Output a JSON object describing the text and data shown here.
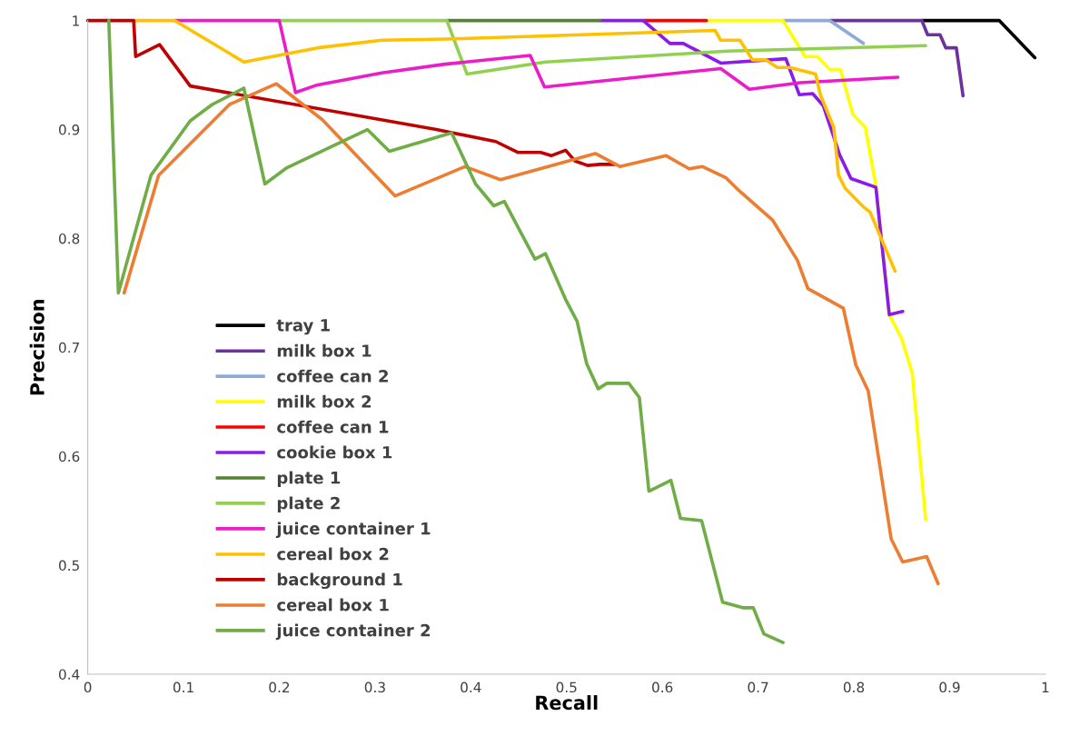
{
  "chart_data": {
    "type": "line",
    "xlabel": "Recall",
    "ylabel": "Precision",
    "xlim": [
      0,
      1
    ],
    "ylim": [
      0.4,
      1
    ],
    "xticks": [
      0,
      0.1,
      0.2,
      0.3,
      0.4,
      0.5,
      0.6,
      0.7,
      0.8,
      0.9,
      1
    ],
    "yticks": [
      0.4,
      0.5,
      0.6,
      0.7,
      0.8,
      0.9,
      1
    ],
    "grid": false,
    "legend": "lower left",
    "marker": "none",
    "line_style": "solid",
    "series": [
      {
        "name": "tray 1",
        "color": "#000000",
        "x": [
          0.871,
          0.952,
          0.989
        ],
        "values": [
          1,
          1,
          0.966
        ]
      },
      {
        "name": "milk box 1",
        "color": "#7030a0",
        "x": [
          0.775,
          0.871,
          0.877,
          0.89,
          0.896,
          0.907,
          0.914
        ],
        "values": [
          1,
          1,
          0.987,
          0.987,
          0.975,
          0.975,
          0.931
        ]
      },
      {
        "name": "coffee can 2",
        "color": "#8eaadb",
        "x": [
          0.726,
          0.775,
          0.81
        ],
        "values": [
          1,
          1,
          0.979
        ]
      },
      {
        "name": "milk box 2",
        "color": "#ffff00",
        "x": [
          0.646,
          0.726,
          0.749,
          0.762,
          0.775,
          0.786,
          0.799,
          0.812,
          0.823,
          0.837,
          0.85,
          0.861,
          0.875
        ],
        "values": [
          1,
          1,
          0.967,
          0.967,
          0.955,
          0.955,
          0.914,
          0.902,
          0.848,
          0.73,
          0.708,
          0.676,
          0.542
        ]
      },
      {
        "name": "coffee can 1",
        "color": "#ff0000",
        "x": [
          0.58,
          0.646
        ],
        "values": [
          1,
          1
        ]
      },
      {
        "name": "cookie box 1",
        "color": "#8b1be8",
        "x": [
          0.535,
          0.58,
          0.608,
          0.622,
          0.661,
          0.729,
          0.743,
          0.757,
          0.768,
          0.778,
          0.785,
          0.797,
          0.823,
          0.837,
          0.851
        ],
        "values": [
          1,
          1,
          0.979,
          0.979,
          0.961,
          0.965,
          0.932,
          0.933,
          0.922,
          0.896,
          0.877,
          0.855,
          0.847,
          0.73,
          0.733
        ]
      },
      {
        "name": "plate 1",
        "color": "#548235",
        "x": [
          0.375,
          0.535
        ],
        "values": [
          1,
          1
        ]
      },
      {
        "name": "plate 2",
        "color": "#92d050",
        "x": [
          0.2,
          0.375,
          0.396,
          0.478,
          0.668,
          0.875
        ],
        "values": [
          1,
          1,
          0.951,
          0.962,
          0.972,
          0.977
        ]
      },
      {
        "name": "juice container 1",
        "color": "#e91ec8",
        "x": [
          0.091,
          0.2,
          0.217,
          0.24,
          0.307,
          0.373,
          0.462,
          0.477,
          0.661,
          0.691,
          0.744,
          0.846
        ],
        "values": [
          1,
          1,
          0.934,
          0.941,
          0.952,
          0.96,
          0.968,
          0.939,
          0.956,
          0.937,
          0.943,
          0.948
        ]
      },
      {
        "name": "cereal box 2",
        "color": "#ffc000",
        "x": [
          0.048,
          0.091,
          0.163,
          0.24,
          0.307,
          0.373,
          0.655,
          0.661,
          0.681,
          0.694,
          0.708,
          0.72,
          0.733,
          0.76,
          0.765,
          0.779,
          0.784,
          0.791,
          0.81,
          0.817,
          0.843
        ],
        "values": [
          1,
          1,
          0.962,
          0.975,
          0.982,
          0.983,
          0.991,
          0.982,
          0.982,
          0.964,
          0.964,
          0.957,
          0.957,
          0.951,
          0.932,
          0.902,
          0.858,
          0.846,
          0.829,
          0.824,
          0.77
        ]
      },
      {
        "name": "background 1",
        "color": "#c00000",
        "x": [
          0,
          0.048,
          0.05,
          0.075,
          0.107,
          0.364,
          0.426,
          0.449,
          0.473,
          0.484,
          0.499,
          0.509,
          0.522,
          0.535,
          0.55
        ],
        "values": [
          1,
          1,
          0.967,
          0.978,
          0.94,
          0.9,
          0.889,
          0.879,
          0.879,
          0.876,
          0.881,
          0.871,
          0.867,
          0.868,
          0.868
        ]
      },
      {
        "name": "cereal box 1",
        "color": "#ed7d31",
        "x": [
          0.038,
          0.074,
          0.148,
          0.197,
          0.245,
          0.321,
          0.394,
          0.431,
          0.53,
          0.556,
          0.604,
          0.628,
          0.642,
          0.666,
          0.68,
          0.715,
          0.741,
          0.752,
          0.789,
          0.802,
          0.815,
          0.839,
          0.851,
          0.876,
          0.888
        ],
        "values": [
          0.75,
          0.858,
          0.923,
          0.942,
          0.909,
          0.839,
          0.866,
          0.854,
          0.878,
          0.866,
          0.876,
          0.864,
          0.866,
          0.856,
          0.844,
          0.817,
          0.78,
          0.754,
          0.736,
          0.684,
          0.66,
          0.524,
          0.503,
          0.508,
          0.483
        ]
      },
      {
        "name": "juice container 2",
        "color": "#70ad47",
        "x": [
          0.022,
          0.032,
          0.066,
          0.107,
          0.13,
          0.163,
          0.185,
          0.208,
          0.292,
          0.315,
          0.38,
          0.405,
          0.424,
          0.435,
          0.467,
          0.478,
          0.499,
          0.511,
          0.521,
          0.533,
          0.542,
          0.565,
          0.576,
          0.586,
          0.609,
          0.619,
          0.641,
          0.663,
          0.684,
          0.695,
          0.706,
          0.726
        ],
        "values": [
          1,
          0.75,
          0.858,
          0.908,
          0.923,
          0.938,
          0.85,
          0.865,
          0.9,
          0.88,
          0.897,
          0.85,
          0.83,
          0.834,
          0.781,
          0.786,
          0.744,
          0.724,
          0.685,
          0.662,
          0.667,
          0.667,
          0.654,
          0.568,
          0.578,
          0.543,
          0.541,
          0.466,
          0.461,
          0.461,
          0.437,
          0.429
        ]
      }
    ]
  }
}
